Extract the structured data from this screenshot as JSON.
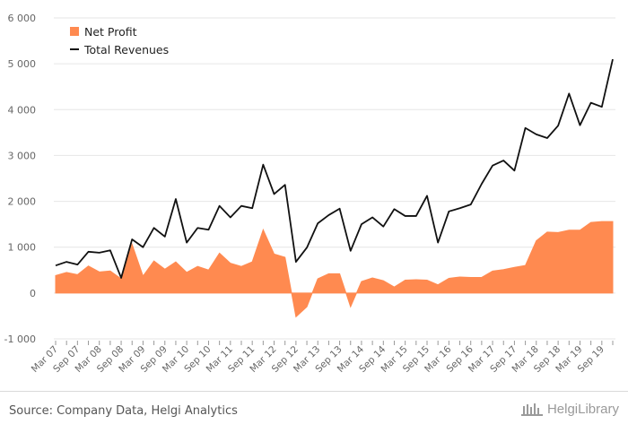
{
  "chart_data": {
    "type": "area",
    "ylim": [
      -1000,
      6000
    ],
    "yticks": [
      -1000,
      0,
      1000,
      2000,
      3000,
      4000,
      5000,
      6000
    ],
    "ytick_labels": [
      "-1 000",
      "0",
      "1 000",
      "2 000",
      "3 000",
      "4 000",
      "5 000",
      "6 000"
    ],
    "xtick_labels": [
      "Mar 07",
      "Sep 07",
      "Mar 08",
      "Sep 08",
      "Mar 09",
      "Sep 09",
      "Mar 10",
      "Sep 10",
      "Mar 11",
      "Sep 11",
      "Mar 12",
      "Sep 12",
      "Mar 13",
      "Sep 13",
      "Mar 14",
      "Sep 14",
      "Mar 15",
      "Sep 15",
      "Mar 16",
      "Sep 16",
      "Mar 17",
      "Sep 17",
      "Mar 18",
      "Sep 18",
      "Mar 19",
      "Sep 19"
    ],
    "legend_position": "top-left",
    "grid": true,
    "series": [
      {
        "name": "Net Profit",
        "type": "area",
        "color": "#ff8a50",
        "values": [
          380,
          450,
          400,
          590,
          460,
          480,
          310,
          1060,
          370,
          700,
          520,
          680,
          450,
          580,
          500,
          870,
          650,
          580,
          680,
          1380,
          850,
          780,
          -520,
          -300,
          310,
          420,
          420,
          -300,
          250,
          330,
          270,
          130,
          280,
          290,
          280,
          180,
          320,
          350,
          340,
          340,
          480,
          510,
          560,
          600,
          1140,
          1330,
          1320,
          1370,
          1370,
          1540,
          1560,
          1560
        ]
      },
      {
        "name": "Total Revenues",
        "type": "line",
        "color": "#111111",
        "values": [
          600,
          680,
          620,
          900,
          880,
          930,
          330,
          1170,
          1000,
          1420,
          1230,
          2050,
          1100,
          1420,
          1380,
          1900,
          1650,
          1900,
          1850,
          2800,
          2160,
          2360,
          680,
          990,
          1520,
          1700,
          1840,
          920,
          1500,
          1650,
          1450,
          1830,
          1680,
          1680,
          2120,
          1100,
          1780,
          1850,
          1930,
          2380,
          2780,
          2890,
          2670,
          3600,
          3460,
          3380,
          3650,
          4350,
          3660,
          4150,
          4060,
          5100
        ]
      }
    ]
  },
  "footer": {
    "source": "Source: Company Data, Helgi Analytics",
    "logo_text": "HelgiLibrary"
  },
  "colors": {
    "profit_fill": "#ff8a50",
    "revenue_line": "#111111",
    "grid": "#e6e6e6"
  }
}
